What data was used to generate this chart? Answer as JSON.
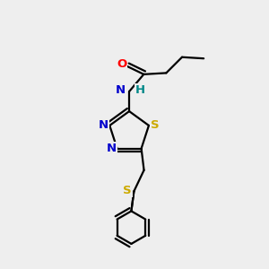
{
  "background_color": "#eeeeee",
  "atom_colors": {
    "C": "#000000",
    "N": "#0000cc",
    "O": "#ff0000",
    "S_ring": "#ccaa00",
    "S_thio": "#ccaa00",
    "H": "#008888"
  },
  "figsize": [
    3.0,
    3.0
  ],
  "dpi": 100,
  "bond_lw": 1.6,
  "font_size": 9.5
}
